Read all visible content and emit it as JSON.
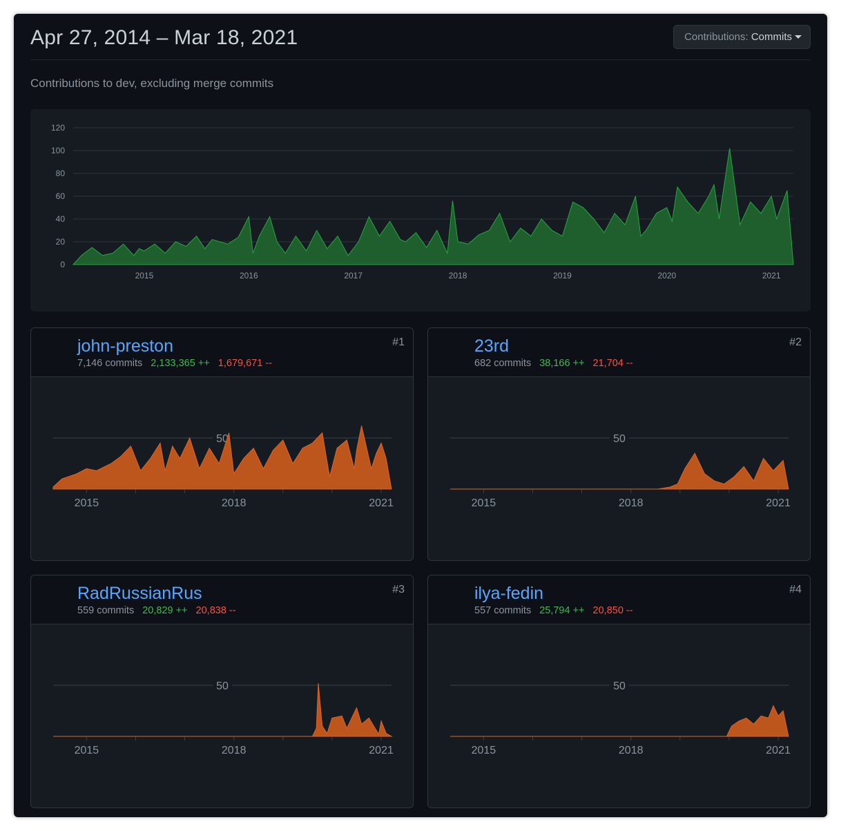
{
  "header": {
    "title": "Apr 27, 2014 – Mar 18, 2021",
    "dropdown_label": "Contributions:",
    "dropdown_value": "Commits"
  },
  "subtitle": "Contributions to dev, excluding merge commits",
  "colors": {
    "background": "#0d1117",
    "panel": "#161b22",
    "main_area": "#26a641",
    "contributor_area": "#d9642a",
    "link": "#58a6ff",
    "additions": "#3fb950",
    "deletions": "#f85149"
  },
  "chart_data": [
    {
      "type": "area",
      "title": "",
      "x_unit": "year",
      "xlim": [
        2014.32,
        2021.21
      ],
      "ylim": [
        0,
        120
      ],
      "y_ticks": [
        0,
        20,
        40,
        60,
        80,
        100,
        120
      ],
      "x_ticks": [
        "2015",
        "2016",
        "2017",
        "2018",
        "2019",
        "2020",
        "2021"
      ],
      "grid": true,
      "series": [
        {
          "x": [
            2014.32,
            2014.4,
            2014.5,
            2014.6,
            2014.7,
            2014.8,
            2014.9,
            2014.95,
            2015.0,
            2015.1,
            2015.2,
            2015.3,
            2015.4,
            2015.5,
            2015.58,
            2015.65,
            2015.8,
            2015.9,
            2016.0,
            2016.04,
            2016.1,
            2016.2,
            2016.27,
            2016.35,
            2016.45,
            2016.55,
            2016.65,
            2016.75,
            2016.85,
            2016.95,
            2017.05,
            2017.15,
            2017.25,
            2017.35,
            2017.45,
            2017.5,
            2017.6,
            2017.7,
            2017.8,
            2017.9,
            2017.95,
            2018.0,
            2018.1,
            2018.2,
            2018.3,
            2018.4,
            2018.5,
            2018.6,
            2018.7,
            2018.8,
            2018.9,
            2019.0,
            2019.1,
            2019.2,
            2019.3,
            2019.4,
            2019.5,
            2019.6,
            2019.7,
            2019.75,
            2019.8,
            2019.9,
            2020.0,
            2020.05,
            2020.1,
            2020.2,
            2020.3,
            2020.4,
            2020.45,
            2020.5,
            2020.6,
            2020.7,
            2020.8,
            2020.9,
            2021.0,
            2021.05,
            2021.15,
            2021.21
          ],
          "values": [
            0,
            8,
            15,
            8,
            10,
            18,
            8,
            14,
            12,
            18,
            10,
            20,
            16,
            25,
            14,
            22,
            18,
            24,
            42,
            10,
            25,
            42,
            20,
            10,
            25,
            12,
            30,
            14,
            25,
            8,
            20,
            42,
            25,
            38,
            22,
            20,
            28,
            15,
            30,
            10,
            56,
            20,
            18,
            26,
            30,
            45,
            20,
            32,
            25,
            40,
            30,
            25,
            55,
            50,
            40,
            28,
            45,
            35,
            60,
            25,
            30,
            45,
            50,
            38,
            68,
            55,
            45,
            60,
            70,
            40,
            102,
            35,
            55,
            45,
            60,
            40,
            65,
            0
          ]
        }
      ]
    },
    {
      "type": "area",
      "title": "john-preston",
      "xlim": [
        2014.32,
        2021.21
      ],
      "ylim": [
        0,
        100
      ],
      "y_ticks": [
        50
      ],
      "x_ticks": [
        "2015",
        "2018",
        "2021"
      ],
      "series": [
        {
          "x": [
            2014.32,
            2014.5,
            2014.8,
            2015.0,
            2015.2,
            2015.5,
            2015.7,
            2015.9,
            2016.1,
            2016.3,
            2016.5,
            2016.6,
            2016.75,
            2016.9,
            2017.1,
            2017.3,
            2017.5,
            2017.7,
            2017.9,
            2018.0,
            2018.2,
            2018.4,
            2018.6,
            2018.8,
            2019.0,
            2019.2,
            2019.4,
            2019.6,
            2019.8,
            2019.95,
            2020.1,
            2020.3,
            2020.45,
            2020.5,
            2020.6,
            2020.8,
            2020.9,
            2021.0,
            2021.1,
            2021.21
          ],
          "values": [
            2,
            10,
            15,
            20,
            18,
            25,
            32,
            42,
            18,
            30,
            45,
            18,
            42,
            30,
            50,
            20,
            40,
            25,
            55,
            15,
            30,
            40,
            20,
            38,
            48,
            25,
            40,
            45,
            55,
            12,
            40,
            48,
            20,
            38,
            62,
            20,
            35,
            45,
            30,
            0
          ]
        }
      ]
    },
    {
      "type": "area",
      "title": "23rd",
      "xlim": [
        2014.32,
        2021.21
      ],
      "ylim": [
        0,
        100
      ],
      "y_ticks": [
        50
      ],
      "x_ticks": [
        "2015",
        "2018",
        "2021"
      ],
      "series": [
        {
          "x": [
            2014.32,
            2018.55,
            2018.8,
            2018.95,
            2019.1,
            2019.3,
            2019.5,
            2019.7,
            2019.9,
            2020.1,
            2020.3,
            2020.5,
            2020.7,
            2020.9,
            2021.1,
            2021.21
          ],
          "values": [
            0,
            0,
            2,
            5,
            20,
            35,
            15,
            8,
            5,
            12,
            22,
            8,
            30,
            18,
            28,
            0
          ]
        }
      ]
    },
    {
      "type": "area",
      "title": "RadRussianRus",
      "xlim": [
        2014.32,
        2021.21
      ],
      "ylim": [
        0,
        100
      ],
      "y_ticks": [
        50
      ],
      "x_ticks": [
        "2015",
        "2018",
        "2021"
      ],
      "series": [
        {
          "x": [
            2014.32,
            2019.6,
            2019.68,
            2019.72,
            2019.8,
            2019.9,
            2020.0,
            2020.2,
            2020.3,
            2020.5,
            2020.6,
            2020.75,
            2020.95,
            2021.0,
            2021.1,
            2021.21
          ],
          "values": [
            0,
            0,
            8,
            52,
            10,
            3,
            18,
            20,
            8,
            28,
            12,
            18,
            2,
            15,
            3,
            0
          ]
        }
      ]
    },
    {
      "type": "area",
      "title": "ilya-fedin",
      "xlim": [
        2014.32,
        2021.21
      ],
      "ylim": [
        0,
        100
      ],
      "y_ticks": [
        50
      ],
      "x_ticks": [
        "2015",
        "2018",
        "2021"
      ],
      "series": [
        {
          "x": [
            2014.32,
            2019.95,
            2020.05,
            2020.2,
            2020.35,
            2020.5,
            2020.65,
            2020.8,
            2020.9,
            2021.0,
            2021.1,
            2021.21
          ],
          "values": [
            0,
            0,
            10,
            15,
            18,
            12,
            20,
            18,
            30,
            20,
            25,
            0
          ]
        }
      ]
    }
  ],
  "contributors": [
    {
      "username": "john-preston",
      "commits": "7,146 commits",
      "additions": "2,133,365 ++",
      "deletions": "1,679,671 --",
      "rank": "#1",
      "avatar_icon": "portrait-avatar",
      "y_tick_label": "50",
      "x_labels": [
        "2015",
        "2018",
        "2021"
      ]
    },
    {
      "username": "23rd",
      "commits": "682 commits",
      "additions": "38,166 ++",
      "deletions": "21,704 --",
      "rank": "#2",
      "avatar_icon": "creature-avatar",
      "y_tick_label": "50",
      "x_labels": [
        "2015",
        "2018",
        "2021"
      ]
    },
    {
      "username": "RadRussianRus",
      "commits": "559 commits",
      "additions": "20,829 ++",
      "deletions": "20,838 --",
      "rank": "#3",
      "avatar_icon": "cat-sunglasses-avatar",
      "y_tick_label": "50",
      "x_labels": [
        "2015",
        "2018",
        "2021"
      ]
    },
    {
      "username": "ilya-fedin",
      "commits": "557 commits",
      "additions": "25,794 ++",
      "deletions": "20,850 --",
      "rank": "#4",
      "avatar_icon": "hat-avatar",
      "y_tick_label": "50",
      "x_labels": [
        "2015",
        "2018",
        "2021"
      ]
    }
  ]
}
